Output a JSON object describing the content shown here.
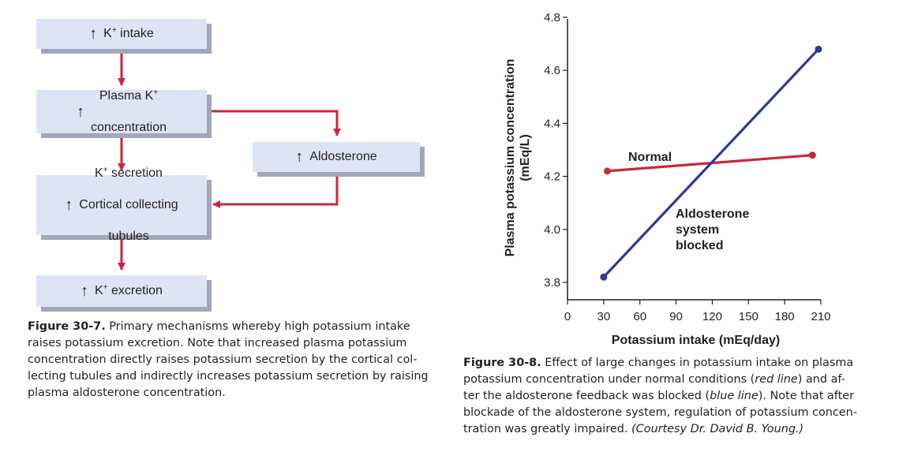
{
  "flowchart": {
    "nodes": {
      "k_intake": {
        "arrow": "↑",
        "label_main": "K",
        "label_sup": "+",
        "label_rest": " intake"
      },
      "plasma_k": {
        "arrow": "↑",
        "line1_main": "Plasma K",
        "line1_sup": "+",
        "line2": "concentration"
      },
      "aldosterone": {
        "arrow": "↑",
        "label": "Aldosterone"
      },
      "k_secretion": {
        "arrow": "↑",
        "line1_main": "K",
        "line1_sup": "+",
        "line1_rest": " secretion",
        "line2": "Cortical collecting",
        "line3": "tubules"
      },
      "k_excretion": {
        "arrow": "↑",
        "label_main": "K",
        "label_sup": "+",
        "label_rest": " excretion"
      }
    },
    "colors": {
      "box_fill": "#dfe4f5",
      "box_shadow": "#a2a7b8",
      "connector": "#c8283c"
    }
  },
  "caption_left": {
    "label": "Figure 30-7.",
    "line1": " Primary mechanisms whereby high potassium intake",
    "line2": "raises potassium excretion. Note that increased plasma potassium",
    "line3": "concentration directly raises potassium secretion by the cortical col-",
    "line4": "lecting tubules and indirectly increases potassium secretion by raising",
    "line5": "plasma aldosterone concentration."
  },
  "caption_right": {
    "label": "Figure 30-8.",
    "line1": " Effect of large changes in potassium intake on plasma",
    "line2a": "potassium concentration under normal conditions (",
    "line2b": "red line",
    "line2c": ") and af-",
    "line3a": "ter the aldosterone feedback was blocked (",
    "line3b": "blue line",
    "line3c": "). Note that after",
    "line4": "blockade of the aldosterone system, regulation of potassium concen-",
    "line5a": "tration was greatly impaired. ",
    "line5b": "(Courtesy Dr. David B. Young.)"
  },
  "chart_data": {
    "type": "line",
    "xlabel": "Potassium intake (mEq/day)",
    "ylabel_line1": "Plasma potassium concentration",
    "ylabel_line2": "(mEq/L)",
    "xlim": [
      0,
      210
    ],
    "ylim": [
      3.8,
      4.8
    ],
    "x_ticks": [
      0,
      30,
      60,
      90,
      120,
      150,
      180,
      210
    ],
    "y_ticks": [
      3.8,
      4.0,
      4.2,
      4.4,
      4.6,
      4.8
    ],
    "y_tick_labels": [
      "3.8",
      "4.0",
      "4.2",
      "4.4",
      "4.6",
      "4.8"
    ],
    "series": [
      {
        "name": "Normal",
        "color": "#c8283c",
        "x": [
          33,
          203
        ],
        "y": [
          4.22,
          4.28
        ]
      },
      {
        "name": "Aldosterone system blocked",
        "color": "#2e3a92",
        "x": [
          30,
          208
        ],
        "y": [
          3.82,
          4.68
        ]
      }
    ],
    "annotations": {
      "normal": "Normal",
      "blocked_line1": "Aldosterone",
      "blocked_line2": "system",
      "blocked_line3": "blocked"
    },
    "grid": false
  }
}
